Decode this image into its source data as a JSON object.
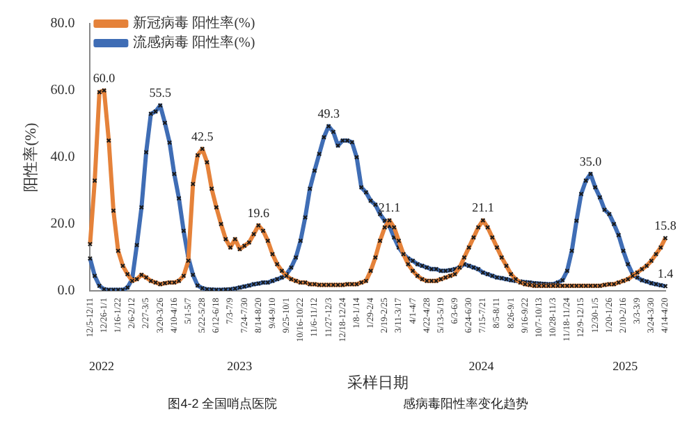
{
  "chart_data": {
    "type": "line",
    "xlabel": "采样日期",
    "ylabel": "阳性率(%)",
    "categories": [
      "12/5-12/11",
      null,
      null,
      "12/26-1/1",
      null,
      null,
      "1/16-1/22",
      null,
      null,
      "2/6-2/12",
      null,
      null,
      "2/27-3/5",
      null,
      null,
      "3/20-3/26",
      null,
      null,
      "4/10-4/16",
      null,
      null,
      "5/1-5/7",
      null,
      null,
      "5/22-5/28",
      null,
      null,
      "6/12-6/18",
      null,
      null,
      "7/3-7/9",
      null,
      null,
      "7/24-7/30",
      null,
      null,
      "8/14-8/20",
      null,
      null,
      "9/4-9/10",
      null,
      null,
      "9/25-10/1",
      null,
      null,
      "10/16-10/22",
      null,
      null,
      "11/6-11/12",
      null,
      null,
      "11/27-12/3",
      null,
      null,
      "12/18-12/24",
      null,
      null,
      "1/8-1/14",
      null,
      null,
      "1/29-2/4",
      null,
      null,
      "2/19-2/25",
      null,
      null,
      "3/11-3/17",
      null,
      null,
      "4/1-4/7",
      null,
      null,
      "4/22-4/28",
      null,
      null,
      "5/13-5/19",
      null,
      null,
      "6/3-6/9",
      null,
      null,
      "6/24-6/30",
      null,
      null,
      "7/15-7/21",
      null,
      null,
      "8/5-8/11",
      null,
      null,
      "8/26-9/1",
      null,
      null,
      "9/16-9/22",
      null,
      null,
      "10/7-10/13",
      null,
      null,
      "10/28-11/3",
      null,
      null,
      "11/18-11/24",
      null,
      null,
      "12/9-12/15",
      null,
      null,
      "12/30-1/5",
      null,
      null,
      "1/20-1/26",
      null,
      null,
      "2/10-2/16",
      null,
      null,
      "3/3-3/9",
      null,
      null,
      "3/24-3/30",
      null,
      null,
      "4/14-4/20"
    ],
    "series": [
      {
        "name": "新冠病毒 阳性率(%)",
        "color": "#e5823a",
        "values": [
          14,
          33,
          59.5,
          60.0,
          45,
          24,
          12,
          7.5,
          5,
          3,
          3.5,
          4.8,
          4,
          3,
          2.5,
          2,
          2.3,
          2.5,
          2.5,
          3,
          4.5,
          9,
          32,
          40.6,
          42.5,
          38.5,
          30.6,
          25,
          20,
          15.5,
          13,
          15.5,
          12.5,
          13.5,
          14.5,
          17,
          19.6,
          18,
          15,
          11,
          8,
          6,
          4.5,
          3.5,
          3,
          2.5,
          2.5,
          2,
          2,
          1.8,
          1.8,
          1.8,
          1.8,
          1.8,
          1.8,
          2,
          2,
          2,
          2.5,
          3,
          6,
          10,
          15,
          19,
          21.1,
          19,
          15,
          11,
          8,
          6,
          4.5,
          3.5,
          3,
          3,
          3,
          3.5,
          4,
          4.5,
          5,
          7,
          10,
          13,
          16,
          19,
          21.1,
          19,
          16,
          13,
          10,
          7.5,
          5,
          3.5,
          2.5,
          2,
          1.8,
          1.5,
          1.5,
          1.5,
          1.5,
          1.5,
          1.5,
          1.5,
          1.5,
          1.5,
          1.5,
          1.5,
          1.5,
          1.5,
          1.5,
          1.5,
          1.8,
          2,
          2,
          2.5,
          3,
          3.5,
          4.5,
          5.5,
          6.5,
          7.5,
          9,
          11,
          13,
          15.8
        ],
        "value_labels": [
          null,
          null,
          null,
          "60.0",
          null,
          null,
          null,
          null,
          null,
          null,
          null,
          null,
          null,
          null,
          null,
          null,
          null,
          null,
          null,
          null,
          null,
          null,
          null,
          null,
          "42.5",
          null,
          null,
          null,
          null,
          null,
          null,
          null,
          null,
          null,
          null,
          null,
          "19.6",
          null,
          null,
          null,
          null,
          null,
          null,
          null,
          null,
          null,
          null,
          null,
          null,
          null,
          null,
          null,
          null,
          null,
          null,
          null,
          null,
          null,
          null,
          null,
          null,
          null,
          null,
          null,
          "21.1",
          null,
          null,
          null,
          null,
          null,
          null,
          null,
          null,
          null,
          null,
          null,
          null,
          null,
          null,
          null,
          null,
          null,
          null,
          null,
          "21.1",
          null,
          null,
          null,
          null,
          null,
          null,
          null,
          null,
          null,
          null,
          null,
          null,
          null,
          null,
          null,
          null,
          null,
          null,
          null,
          null,
          null,
          null,
          null,
          null,
          null,
          null,
          null,
          null,
          null,
          null,
          null,
          null,
          null,
          null,
          null,
          null,
          null,
          null,
          "15.8"
        ]
      },
      {
        "name": "流感病毒 阳性率(%)",
        "color": "#3f6db5",
        "values": [
          9.7,
          4.5,
          1.5,
          0.5,
          0.3,
          0.3,
          0.3,
          0.3,
          1,
          3.5,
          13.7,
          25,
          41.5,
          53,
          53.7,
          55.5,
          50.3,
          44.4,
          35,
          27.7,
          18,
          10,
          4.8,
          1.6,
          0.8,
          0.5,
          0.4,
          0.3,
          0.3,
          0.4,
          0.5,
          0.7,
          1,
          1.3,
          1.6,
          2,
          2.2,
          2.5,
          2.5,
          3,
          3.5,
          4,
          5,
          7,
          10,
          15,
          22,
          30.6,
          36,
          41,
          46,
          49.3,
          47.6,
          43.5,
          45,
          45,
          44.5,
          40,
          31,
          29.5,
          27,
          25.8,
          23,
          21,
          19.4,
          16,
          13,
          11,
          9.7,
          9,
          8,
          7.5,
          7,
          6.5,
          6.5,
          6,
          6,
          6.2,
          6.5,
          7,
          8,
          7.5,
          7,
          6.5,
          5.5,
          5,
          4.5,
          4,
          3.8,
          3.5,
          3.2,
          3,
          2.8,
          2.6,
          2.5,
          2.3,
          2.2,
          2.1,
          2,
          2,
          2.5,
          3.2,
          6,
          12,
          21,
          29,
          33,
          35.0,
          31,
          28,
          24.3,
          23,
          20,
          16.7,
          12,
          8,
          5,
          4,
          3.2,
          2.8,
          2.3,
          2,
          1.7,
          1.4
        ],
        "value_labels": [
          null,
          null,
          null,
          null,
          null,
          null,
          null,
          null,
          null,
          null,
          null,
          null,
          null,
          null,
          null,
          "55.5",
          null,
          null,
          null,
          null,
          null,
          null,
          null,
          null,
          null,
          null,
          null,
          null,
          null,
          null,
          null,
          null,
          null,
          null,
          null,
          null,
          null,
          null,
          null,
          null,
          null,
          null,
          null,
          null,
          null,
          null,
          null,
          null,
          null,
          null,
          null,
          "49.3",
          null,
          null,
          null,
          null,
          null,
          null,
          null,
          null,
          null,
          null,
          null,
          null,
          null,
          null,
          null,
          null,
          null,
          null,
          null,
          null,
          null,
          null,
          null,
          null,
          null,
          null,
          null,
          null,
          null,
          null,
          null,
          null,
          null,
          null,
          null,
          null,
          null,
          null,
          null,
          null,
          null,
          null,
          null,
          null,
          null,
          null,
          null,
          null,
          null,
          null,
          null,
          null,
          null,
          null,
          null,
          "35.0",
          null,
          null,
          null,
          null,
          null,
          null,
          null,
          null,
          null,
          null,
          null,
          null,
          null,
          null,
          null,
          "1.4"
        ]
      }
    ],
    "ylim": [
      0,
      80
    ],
    "yticks": [
      {
        "value": 0,
        "label": "0.0"
      },
      {
        "value": 20,
        "label": "20.0"
      },
      {
        "value": 40,
        "label": "40.0"
      },
      {
        "value": 60,
        "label": "60.0"
      },
      {
        "value": 80,
        "label": "80.0"
      }
    ],
    "grid": false,
    "legend": "top left",
    "marker": "cross",
    "line_style": "solid",
    "annotations": [
      "2022",
      "2023",
      "2024",
      "2025",
      "图4-2 全国哨点医院",
      "感病毒阳性率变化趋势"
    ]
  }
}
